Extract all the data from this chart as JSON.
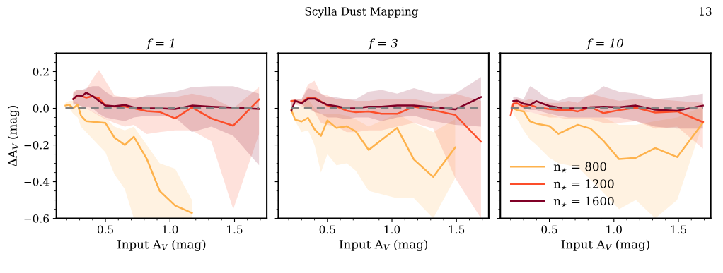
{
  "chart_data": [
    {
      "type": "line",
      "title": "f = 1",
      "xlabel": "Input A$_{V}$ (mag)",
      "ylabel": "ΔA$_{V}$ (mag)",
      "xlim": [
        0.12,
        1.75
      ],
      "ylim": [
        -0.6,
        0.3
      ],
      "xticks": [
        {
          "value": 0.5,
          "label": "0.5"
        },
        {
          "value": 1.0,
          "label": "1.0"
        },
        {
          "value": 1.5,
          "label": "1.5"
        }
      ],
      "yticks": [
        -0.6,
        -0.4,
        -0.2,
        {
          "value": 0.0,
          "label": "0.0"
        },
        0.2
      ],
      "grid": false,
      "legend": false,
      "annotations": [
        "Scylla Dust Mapping",
        "13"
      ],
      "ref_lines": [
        {
          "axis": "y",
          "value": 0,
          "color": "#808080",
          "line_style": "dashed"
        }
      ],
      "series": [
        {
          "color": "#feb24c",
          "x": [
            0.19,
            0.22,
            0.25,
            0.285,
            0.31,
            0.35,
            0.5,
            0.57,
            0.65,
            0.72,
            0.82,
            0.92,
            1.04,
            1.17
          ],
          "values": [
            0.015,
            0.02,
            0.0,
            0.02,
            -0.04,
            -0.07,
            -0.08,
            -0.16,
            -0.2,
            -0.155,
            -0.275,
            -0.45,
            -0.53,
            -0.57
          ],
          "upper": [
            0.03,
            0.04,
            0.04,
            0.03,
            0.01,
            0.0,
            -0.055,
            -0.1,
            -0.12,
            -0.1,
            -0.2,
            -0.3,
            -0.33,
            -0.5
          ],
          "lower": [
            0.0,
            0.0,
            -0.03,
            -0.05,
            -0.1,
            -0.13,
            -0.24,
            -0.36,
            -0.44,
            -0.6,
            -0.6,
            -0.6,
            -0.6,
            -0.6
          ]
        },
        {
          "color": "#fc4e2a",
          "x": [
            0.25,
            0.28,
            0.32,
            0.35,
            0.4,
            0.45,
            0.5,
            0.57,
            0.65,
            0.72,
            0.82,
            0.92,
            1.04,
            1.17,
            1.32,
            1.49,
            1.69
          ],
          "values": [
            0.05,
            0.065,
            0.065,
            0.058,
            0.065,
            0.055,
            0.015,
            0.01,
            0.01,
            0.0,
            -0.015,
            -0.02,
            -0.055,
            0.005,
            -0.055,
            -0.095,
            0.048
          ],
          "upper": [
            0.09,
            0.1,
            0.1,
            0.1,
            0.16,
            0.21,
            0.15,
            0.07,
            0.06,
            0.06,
            0.06,
            0.06,
            0.06,
            0.08,
            0.06,
            0.0,
            0.115
          ],
          "lower": [
            0.03,
            0.02,
            0.01,
            0.0,
            -0.02,
            -0.04,
            -0.06,
            -0.08,
            -0.1,
            -0.09,
            -0.14,
            -0.13,
            -0.12,
            -0.12,
            -0.18,
            -0.55,
            -0.14
          ]
        },
        {
          "color": "#800026",
          "x": [
            0.25,
            0.28,
            0.32,
            0.35,
            0.4,
            0.45,
            0.5,
            0.57,
            0.65,
            0.72,
            0.82,
            0.92,
            1.04,
            1.17,
            1.32,
            1.49,
            1.69
          ],
          "values": [
            0.05,
            0.07,
            0.067,
            0.085,
            0.067,
            0.04,
            0.015,
            0.012,
            0.018,
            0.005,
            0.0,
            0.0,
            -0.004,
            0.015,
            0.009,
            0.004,
            -0.004
          ],
          "upper": [
            0.08,
            0.1,
            0.1,
            0.11,
            0.12,
            0.12,
            0.09,
            0.06,
            0.06,
            0.05,
            0.07,
            0.08,
            0.09,
            0.115,
            0.12,
            0.12,
            0.08
          ],
          "lower": [
            0.02,
            0.02,
            0.01,
            0.01,
            0.0,
            -0.03,
            -0.05,
            -0.06,
            -0.07,
            -0.05,
            -0.04,
            -0.04,
            -0.05,
            -0.13,
            -0.1,
            -0.15,
            -0.31
          ]
        }
      ]
    },
    {
      "type": "line",
      "title": "f = 3",
      "xlabel": "Input A$_{V}$ (mag)",
      "xlim": [
        0.12,
        1.75
      ],
      "ylim": [
        -0.6,
        0.3
      ],
      "xticks": [
        {
          "value": 0.5,
          "label": "0.5"
        },
        {
          "value": 1.0,
          "label": "1.0"
        },
        {
          "value": 1.5,
          "label": "1.5"
        }
      ],
      "yticks": [
        -0.6,
        -0.4,
        -0.2,
        0.0,
        0.2
      ],
      "tick_labels": "x",
      "grid": false,
      "legend": false,
      "ref_lines": [
        {
          "axis": "y",
          "value": 0,
          "color": "#808080",
          "line_style": "dashed"
        }
      ],
      "series": [
        {
          "color": "#feb24c",
          "x": [
            0.22,
            0.25,
            0.3,
            0.35,
            0.4,
            0.45,
            0.5,
            0.57,
            0.65,
            0.72,
            0.82,
            1.04,
            1.17,
            1.32,
            1.49
          ],
          "values": [
            -0.008,
            -0.062,
            -0.072,
            -0.052,
            -0.114,
            -0.15,
            -0.066,
            -0.107,
            -0.098,
            -0.126,
            -0.227,
            -0.107,
            -0.279,
            -0.374,
            -0.213
          ],
          "upper": [
            0.01,
            0.01,
            0.01,
            0.05,
            0.0,
            -0.03,
            -0.03,
            -0.03,
            -0.04,
            -0.06,
            -0.1,
            -0.03,
            -0.08,
            -0.13,
            -0.06
          ],
          "lower": [
            -0.01,
            -0.07,
            -0.13,
            -0.12,
            -0.2,
            -0.35,
            -0.25,
            -0.31,
            -0.3,
            -0.34,
            -0.45,
            -0.49,
            -0.49,
            -0.6,
            -0.38
          ]
        },
        {
          "color": "#fc4e2a",
          "x": [
            0.22,
            0.25,
            0.3,
            0.35,
            0.4,
            0.45,
            0.5,
            0.57,
            0.65,
            0.72,
            0.82,
            0.92,
            1.04,
            1.17,
            1.32,
            1.49,
            1.69
          ],
          "values": [
            0.039,
            0.041,
            0.031,
            0.058,
            0.058,
            0.037,
            0.015,
            0.009,
            -0.013,
            -0.021,
            -0.017,
            -0.03,
            -0.03,
            0.009,
            -0.01,
            -0.036,
            -0.182
          ],
          "upper": [
            0.05,
            0.05,
            0.05,
            0.13,
            0.15,
            0.08,
            0.07,
            0.05,
            0.05,
            0.04,
            0.04,
            0.05,
            0.05,
            0.05,
            0.03,
            0.08,
            0.04
          ],
          "lower": [
            0.0,
            0.02,
            0.01,
            0.01,
            -0.02,
            -0.08,
            -0.09,
            -0.1,
            -0.13,
            -0.13,
            -0.12,
            -0.12,
            -0.1,
            -0.08,
            -0.11,
            -0.38,
            -0.6
          ]
        },
        {
          "color": "#800026",
          "x": [
            0.22,
            0.25,
            0.3,
            0.35,
            0.4,
            0.45,
            0.5,
            0.57,
            0.65,
            0.72,
            0.82,
            0.92,
            1.04,
            1.17,
            1.32,
            1.49,
            1.69
          ],
          "values": [
            -0.014,
            0.041,
            0.028,
            0.052,
            0.052,
            0.035,
            0.019,
            0.012,
            0.0,
            0.0,
            0.009,
            0.009,
            0.015,
            0.015,
            0.006,
            -0.006,
            0.061
          ],
          "upper": [
            0.04,
            0.05,
            0.05,
            0.11,
            0.1,
            0.08,
            0.06,
            0.06,
            0.05,
            0.05,
            0.09,
            0.1,
            0.08,
            0.11,
            0.08,
            0.08,
            0.17
          ],
          "lower": [
            0.0,
            0.03,
            0.02,
            0.0,
            -0.02,
            -0.03,
            -0.05,
            -0.05,
            -0.06,
            -0.05,
            -0.05,
            -0.07,
            -0.05,
            -0.04,
            -0.07,
            -0.09,
            -0.1
          ]
        }
      ]
    },
    {
      "type": "line",
      "title": "f = 10",
      "xlabel": "Input A$_{V}$ (mag)",
      "xlim": [
        0.12,
        1.75
      ],
      "ylim": [
        -0.6,
        0.3
      ],
      "xticks": [
        {
          "value": 0.5,
          "label": "0.5"
        },
        {
          "value": 1.0,
          "label": "1.0"
        },
        {
          "value": 1.5,
          "label": "1.5"
        }
      ],
      "yticks": [
        -0.6,
        -0.4,
        -0.2,
        0.0,
        0.2
      ],
      "tick_labels": "x",
      "grid": false,
      "legend": "bottom left",
      "ref_lines": [
        {
          "axis": "y",
          "value": 0,
          "color": "#808080",
          "line_style": "dashed"
        }
      ],
      "series": [
        {
          "name": "n$_{⋆}$ = 800",
          "color": "#feb24c",
          "x": [
            0.22,
            0.25,
            0.3,
            0.35,
            0.4,
            0.5,
            0.57,
            0.72,
            0.82,
            0.92,
            1.04,
            1.17,
            1.32,
            1.49,
            1.69
          ],
          "values": [
            0.0,
            -0.01,
            -0.017,
            -0.071,
            -0.084,
            -0.097,
            -0.139,
            -0.09,
            -0.111,
            -0.178,
            -0.277,
            -0.27,
            -0.217,
            -0.266,
            -0.079
          ],
          "upper": [
            0.03,
            0.02,
            0.0,
            -0.02,
            -0.03,
            -0.03,
            -0.05,
            -0.05,
            -0.05,
            -0.05,
            -0.09,
            -0.09,
            -0.07,
            -0.05,
            0.01
          ],
          "lower": [
            -0.03,
            -0.06,
            -0.12,
            -0.17,
            -0.2,
            -0.27,
            -0.3,
            -0.32,
            -0.39,
            -0.46,
            -0.55,
            -0.5,
            -0.6,
            -0.5,
            -0.08
          ]
        },
        {
          "name": "n$_{⋆}$ = 1200",
          "color": "#fc4e2a",
          "x": [
            0.2,
            0.22,
            0.25,
            0.3,
            0.35,
            0.4,
            0.5,
            0.57,
            0.65,
            0.72,
            0.82,
            0.92,
            1.04,
            1.17,
            1.32,
            1.49,
            1.69
          ],
          "values": [
            -0.039,
            0.025,
            0.028,
            0.009,
            0.019,
            0.006,
            -0.004,
            -0.01,
            -0.008,
            -0.017,
            0.006,
            -0.026,
            -0.01,
            0.003,
            -0.023,
            -0.017,
            -0.075
          ],
          "upper": [
            0.0,
            0.04,
            0.05,
            0.04,
            0.05,
            0.04,
            0.03,
            0.03,
            0.04,
            0.03,
            0.08,
            0.06,
            0.04,
            0.05,
            0.05,
            0.04,
            0.03
          ],
          "lower": [
            -0.06,
            0.0,
            0.0,
            -0.02,
            -0.02,
            -0.03,
            -0.05,
            -0.05,
            -0.06,
            -0.06,
            -0.06,
            -0.08,
            -0.08,
            -0.07,
            -0.11,
            -0.1,
            -0.22
          ]
        },
        {
          "name": "n$_{⋆}$ = 1600",
          "color": "#800026",
          "x": [
            0.22,
            0.25,
            0.3,
            0.35,
            0.4,
            0.45,
            0.5,
            0.57,
            0.65,
            0.72,
            0.82,
            0.92,
            1.04,
            1.17,
            1.32,
            1.49,
            1.69
          ],
          "values": [
            0.039,
            0.041,
            0.025,
            0.019,
            0.039,
            0.025,
            0.013,
            0.005,
            0.0,
            0.0,
            0.006,
            0.009,
            0.006,
            0.015,
            -0.008,
            -0.013,
            0.015
          ],
          "upper": [
            0.06,
            0.06,
            0.05,
            0.12,
            0.1,
            0.07,
            0.05,
            0.04,
            0.06,
            0.06,
            0.07,
            0.12,
            0.09,
            0.08,
            0.05,
            0.06,
            0.08
          ],
          "lower": [
            0.02,
            0.02,
            0.0,
            -0.01,
            -0.01,
            -0.02,
            -0.03,
            -0.04,
            -0.05,
            -0.05,
            -0.05,
            -0.05,
            -0.05,
            -0.07,
            -0.1,
            -0.11,
            -0.11
          ]
        }
      ]
    }
  ]
}
